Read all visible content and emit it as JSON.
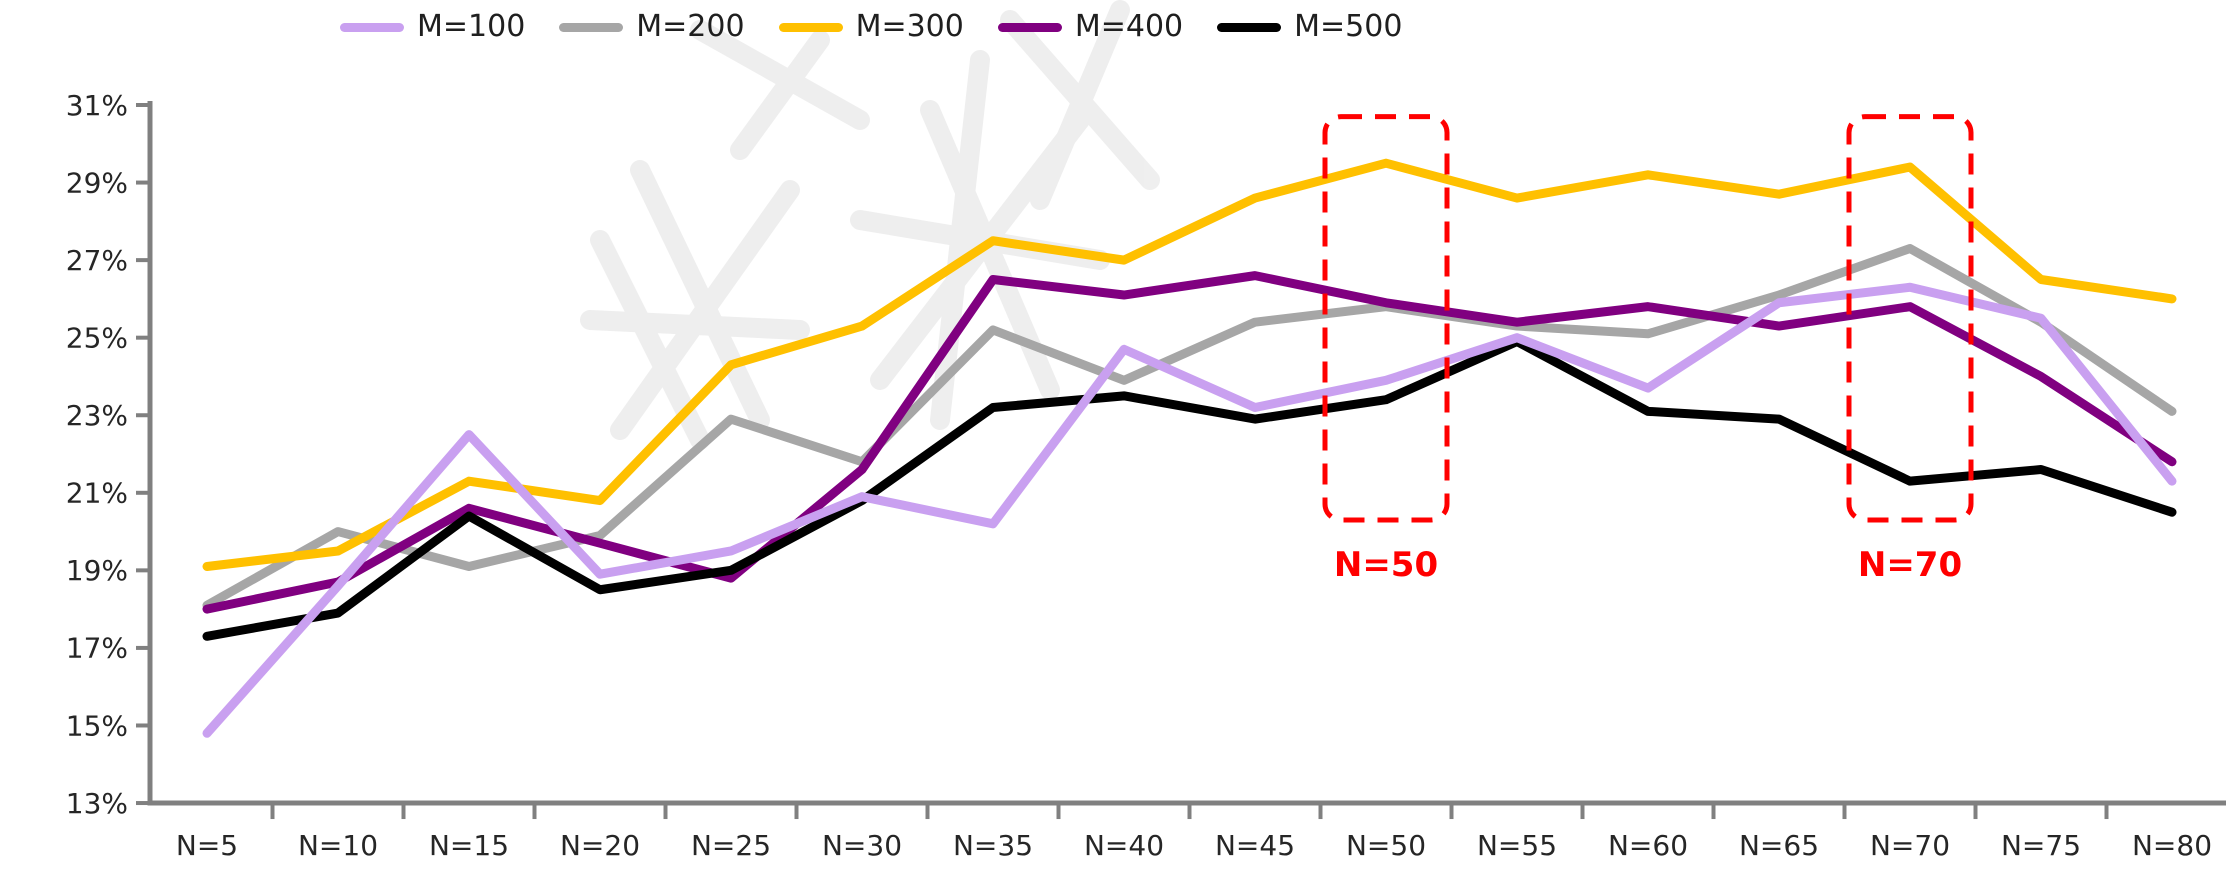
{
  "watermark": {
    "present": true,
    "color": "#EDEDED"
  },
  "legend": {
    "position": "top",
    "items": [
      {
        "label": "M=100",
        "color": "#C9A0F0"
      },
      {
        "label": "M=200",
        "color": "#A6A6A6"
      },
      {
        "label": "M=300",
        "color": "#FFC000"
      },
      {
        "label": "M=400",
        "color": "#800080"
      },
      {
        "label": "M=500",
        "color": "#000000"
      }
    ]
  },
  "chart_data": {
    "type": "line",
    "title": "",
    "xlabel": "",
    "ylabel": "",
    "categories": [
      "N=5",
      "N=10",
      "N=15",
      "N=20",
      "N=25",
      "N=30",
      "N=35",
      "N=40",
      "N=45",
      "N=50",
      "N=55",
      "N=60",
      "N=65",
      "N=70",
      "N=75",
      "N=80"
    ],
    "x_values": [
      5,
      10,
      15,
      20,
      25,
      30,
      35,
      40,
      45,
      50,
      55,
      60,
      65,
      70,
      75,
      80
    ],
    "series": [
      {
        "name": "M=100",
        "color": "#C9A0F0",
        "values": [
          14.8,
          18.6,
          22.5,
          18.9,
          19.5,
          20.9,
          20.2,
          24.7,
          23.2,
          23.9,
          25.0,
          23.7,
          25.9,
          26.3,
          25.5,
          21.3
        ]
      },
      {
        "name": "M=200",
        "color": "#A6A6A6",
        "values": [
          18.1,
          20.0,
          19.1,
          19.9,
          22.9,
          21.8,
          25.2,
          23.9,
          25.4,
          25.8,
          25.3,
          25.1,
          26.1,
          27.3,
          25.4,
          23.1
        ]
      },
      {
        "name": "M=300",
        "color": "#FFC000",
        "values": [
          19.1,
          19.5,
          21.3,
          20.8,
          24.3,
          25.3,
          27.5,
          27.0,
          28.6,
          29.5,
          28.6,
          29.2,
          28.7,
          29.4,
          26.5,
          26.0
        ]
      },
      {
        "name": "M=400",
        "color": "#800080",
        "values": [
          18.0,
          18.7,
          20.6,
          19.7,
          18.8,
          21.6,
          26.5,
          26.1,
          26.6,
          25.9,
          25.4,
          25.8,
          25.3,
          25.8,
          24.0,
          21.8
        ]
      },
      {
        "name": "M=500",
        "color": "#000000",
        "values": [
          17.3,
          17.9,
          20.4,
          18.5,
          19.0,
          20.8,
          23.2,
          23.5,
          22.9,
          23.4,
          24.9,
          23.1,
          22.9,
          21.3,
          21.6,
          20.5
        ]
      }
    ],
    "ylim": [
      13,
      31
    ],
    "ytick_step": 2,
    "ytick_labels": [
      "31%",
      "29%",
      "27%",
      "25%",
      "23%",
      "21%",
      "19%",
      "17%",
      "15%",
      "13%"
    ],
    "grid": false,
    "legend_position": "top",
    "axis_color": "#808080",
    "tick_label_color": "#262626",
    "annotation_color": "#FF0000",
    "annotations": [
      {
        "type": "dashed-box",
        "label": "N=50",
        "category_index": 9,
        "y_top": 30.7,
        "y_bottom": 20.3
      },
      {
        "type": "dashed-box",
        "label": "N=70",
        "category_index": 13,
        "y_top": 30.7,
        "y_bottom": 20.3
      }
    ]
  }
}
